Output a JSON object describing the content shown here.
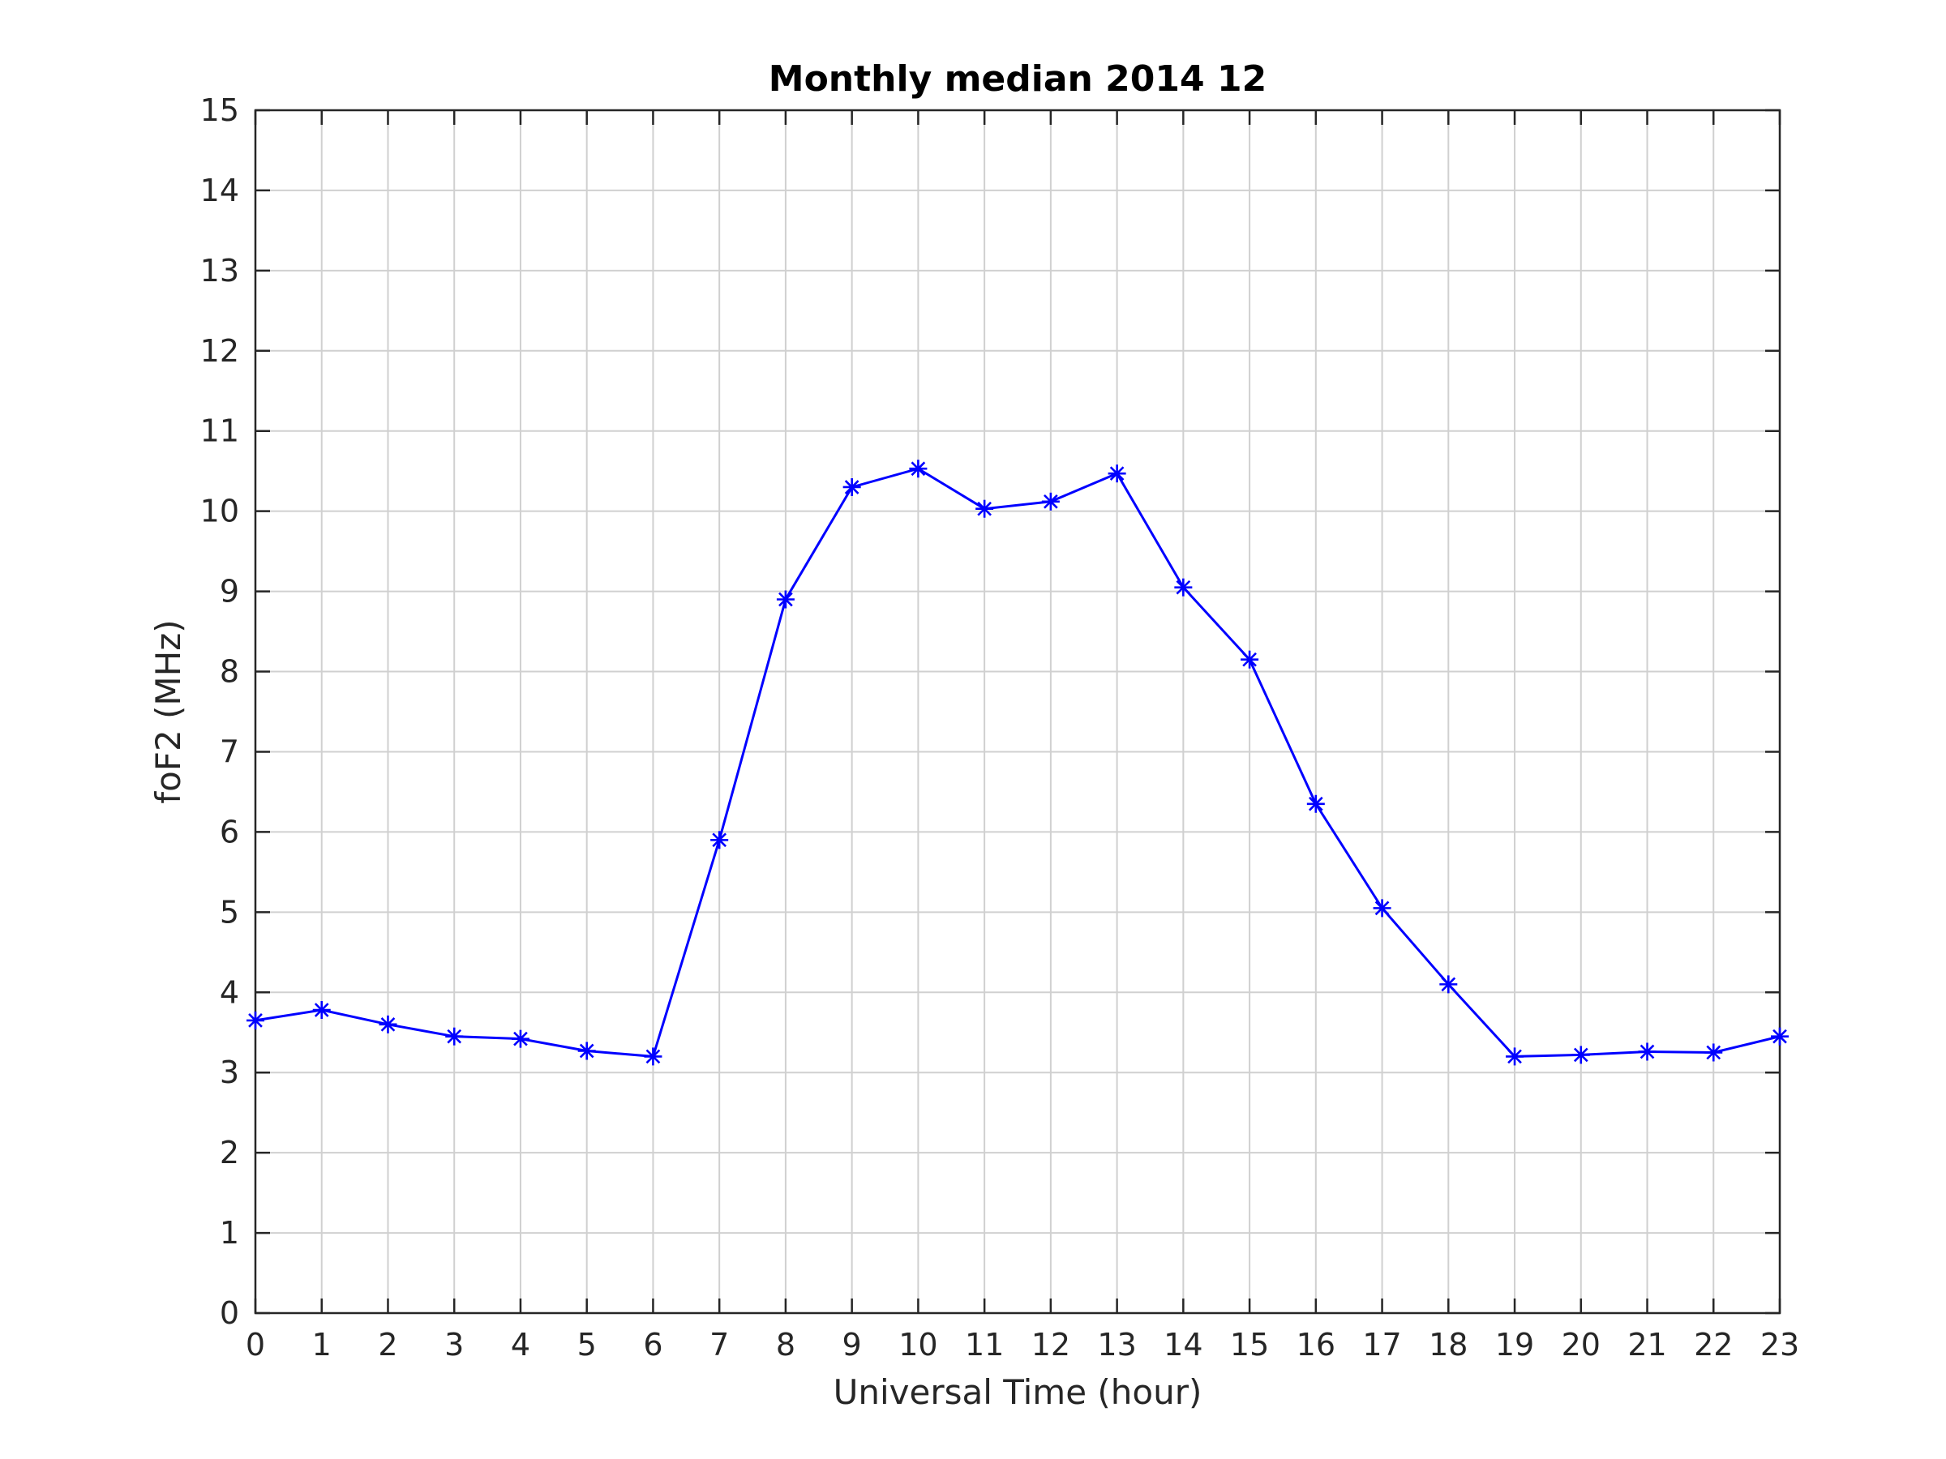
{
  "chart_data": {
    "type": "line",
    "title": "Monthly median 2014 12",
    "xlabel": "Universal Time (hour)",
    "ylabel": "foF2 (MHz)",
    "xlim": [
      0,
      23
    ],
    "ylim": [
      0,
      15
    ],
    "grid": true,
    "x": [
      0,
      1,
      2,
      3,
      4,
      5,
      6,
      7,
      8,
      9,
      10,
      11,
      12,
      13,
      14,
      15,
      16,
      17,
      18,
      19,
      20,
      21,
      22,
      23
    ],
    "x_ticks": [
      "0",
      "1",
      "2",
      "3",
      "4",
      "5",
      "6",
      "7",
      "8",
      "9",
      "10",
      "11",
      "12",
      "13",
      "14",
      "15",
      "16",
      "17",
      "18",
      "19",
      "20",
      "21",
      "22",
      "23"
    ],
    "y_ticks": [
      "0",
      "1",
      "2",
      "3",
      "4",
      "5",
      "6",
      "7",
      "8",
      "9",
      "10",
      "11",
      "12",
      "13",
      "14",
      "15"
    ],
    "series": [
      {
        "color": "#0000ff",
        "marker": "asterisk",
        "values": [
          3.65,
          3.78,
          3.6,
          3.45,
          3.42,
          3.27,
          3.2,
          5.9,
          8.9,
          10.3,
          10.53,
          10.03,
          10.12,
          10.47,
          9.05,
          8.15,
          6.35,
          5.05,
          4.1,
          3.2,
          3.22,
          3.26,
          3.25,
          3.45
        ]
      }
    ]
  }
}
